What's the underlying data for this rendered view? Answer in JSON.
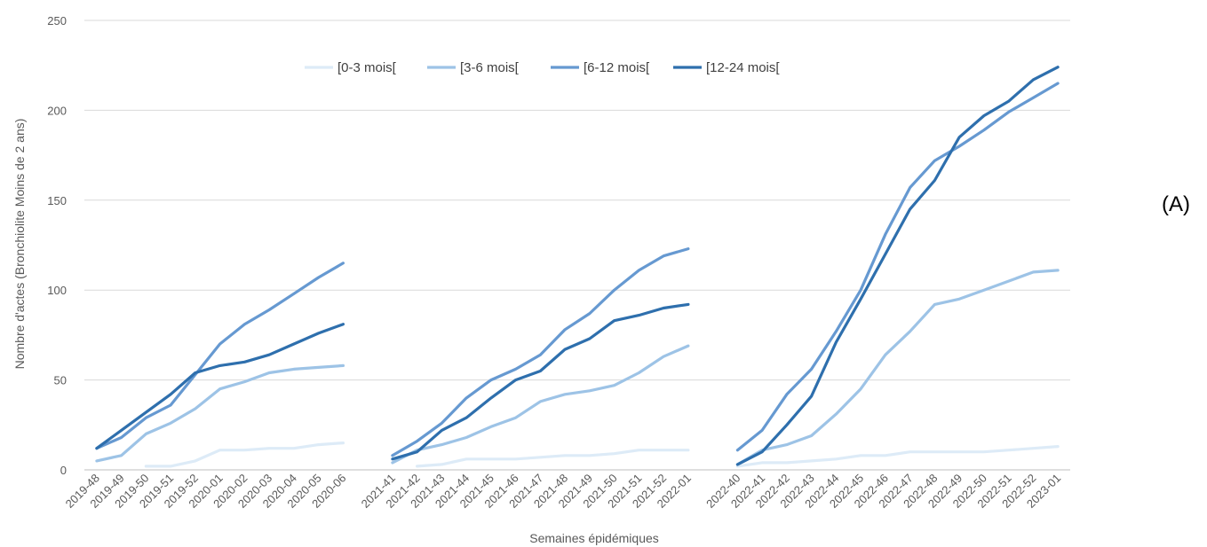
{
  "chart_data": {
    "type": "line",
    "panel_label": "(A)",
    "xlabel": "Semaines épidémiques",
    "ylabel": "Nombre d'actes (Bronchiolite Moins de 2 ans)",
    "ylim": [
      0,
      250
    ],
    "yticks": [
      0,
      50,
      100,
      150,
      200,
      250
    ],
    "grid": true,
    "legend_position": "top",
    "groups": [
      {
        "categories": [
          "2019-48",
          "2019-49",
          "2019-50",
          "2019-51",
          "2019-52",
          "2020-01",
          "2020-02",
          "2020-03",
          "2020-04",
          "2020-05",
          "2020-06"
        ],
        "series": [
          {
            "name": "[0-3 mois[",
            "color": "#ddebf7",
            "values": [
              null,
              null,
              2,
              2,
              5,
              11,
              11,
              12,
              12,
              14,
              15
            ]
          },
          {
            "name": "[3-6 mois[",
            "color": "#9dc3e6",
            "values": [
              5,
              8,
              20,
              26,
              34,
              45,
              49,
              54,
              56,
              57,
              58
            ]
          },
          {
            "name": "[6-12 mois[",
            "color": "#6699d1",
            "values": [
              12,
              18,
              29,
              36,
              53,
              70,
              81,
              89,
              98,
              107,
              115
            ]
          },
          {
            "name": "[12-24 mois[",
            "color": "#2e6fad",
            "values": [
              12,
              22,
              32,
              42,
              54,
              58,
              60,
              64,
              70,
              76,
              81
            ]
          }
        ]
      },
      {
        "categories": [
          "2021-41",
          "2021-42",
          "2021-43",
          "2021-44",
          "2021-45",
          "2021-46",
          "2021-47",
          "2021-48",
          "2021-49",
          "2021-50",
          "2021-51",
          "2021-52",
          "2022-01"
        ],
        "series": [
          {
            "name": "[0-3 mois[",
            "color": "#ddebf7",
            "values": [
              null,
              2,
              3,
              6,
              6,
              6,
              7,
              8,
              8,
              9,
              11,
              11,
              11
            ]
          },
          {
            "name": "[3-6 mois[",
            "color": "#9dc3e6",
            "values": [
              4,
              11,
              14,
              18,
              24,
              29,
              38,
              42,
              44,
              47,
              54,
              63,
              69
            ]
          },
          {
            "name": "[6-12 mois[",
            "color": "#6699d1",
            "values": [
              8,
              16,
              26,
              40,
              50,
              56,
              64,
              78,
              87,
              100,
              111,
              119,
              123
            ]
          },
          {
            "name": "[12-24 mois[",
            "color": "#2e6fad",
            "values": [
              6,
              10,
              22,
              29,
              40,
              50,
              55,
              67,
              73,
              83,
              86,
              90,
              92
            ]
          }
        ]
      },
      {
        "categories": [
          "2022-40",
          "2022-41",
          "2022-42",
          "2022-43",
          "2022-44",
          "2022-45",
          "2022-46",
          "2022-47",
          "2022-48",
          "2022-49",
          "2022-50",
          "2022-51",
          "2022-52",
          "2023-01"
        ],
        "series": [
          {
            "name": "[0-3 mois[",
            "color": "#ddebf7",
            "values": [
              2,
              4,
              4,
              5,
              6,
              8,
              8,
              10,
              10,
              10,
              10,
              11,
              12,
              13
            ]
          },
          {
            "name": "[3-6 mois[",
            "color": "#9dc3e6",
            "values": [
              3,
              11,
              14,
              19,
              31,
              45,
              64,
              77,
              92,
              95,
              100,
              105,
              110,
              111
            ]
          },
          {
            "name": "[6-12 mois[",
            "color": "#6699d1",
            "values": [
              11,
              22,
              42,
              56,
              77,
              100,
              131,
              157,
              172,
              180,
              189,
              199,
              207,
              215
            ]
          },
          {
            "name": "[12-24 mois[",
            "color": "#2e6fad",
            "values": [
              3,
              10,
              25,
              41,
              71,
              95,
              120,
              145,
              161,
              185,
              197,
              205,
              217,
              224
            ]
          }
        ]
      }
    ]
  }
}
